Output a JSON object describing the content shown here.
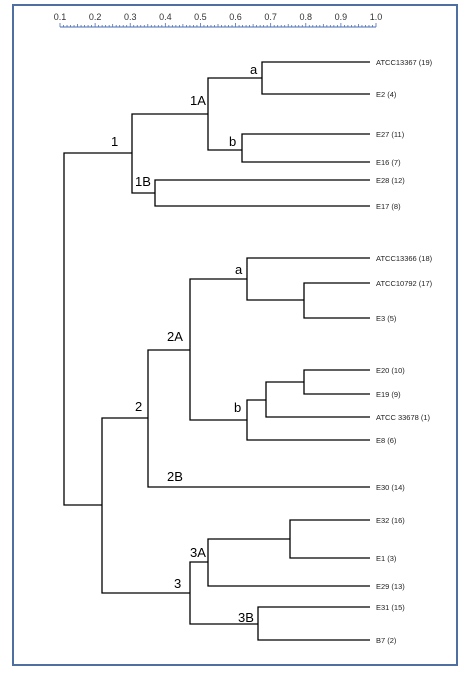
{
  "scale": {
    "tick_labels": [
      "0.1",
      "0.2",
      "0.3",
      "0.4",
      "0.5",
      "0.6",
      "0.7",
      "0.8",
      "0.9",
      "1.0"
    ]
  },
  "leaves": [
    {
      "id": "ATCC13367 (19)"
    },
    {
      "id": "E2 (4)"
    },
    {
      "id": "E27 (11)"
    },
    {
      "id": "E16 (7)"
    },
    {
      "id": "E28 (12)"
    },
    {
      "id": "E17 (8)"
    },
    {
      "id": "ATCC13366 (18)"
    },
    {
      "id": "ATCC10792 (17)"
    },
    {
      "id": "E3 (5)"
    },
    {
      "id": "E20 (10)"
    },
    {
      "id": "E19 (9)"
    },
    {
      "id": "ATCC 33678 (1)"
    },
    {
      "id": "E8 (6)"
    },
    {
      "id": "E30 (14)"
    },
    {
      "id": "E32 (16)"
    },
    {
      "id": "E1 (3)"
    },
    {
      "id": "E29 (13)"
    },
    {
      "id": "E31 (15)"
    },
    {
      "id": "B7 (2)"
    }
  ],
  "cluster_labels": {
    "c1": "1",
    "c1A": "1A",
    "c1A_a": "a",
    "c1A_b": "b",
    "c1B": "1B",
    "c2": "2",
    "c2A": "2A",
    "c2A_a": "a",
    "c2A_b": "b",
    "c2B": "2B",
    "c3": "3",
    "c3A": "3A",
    "c3B": "3B"
  }
}
